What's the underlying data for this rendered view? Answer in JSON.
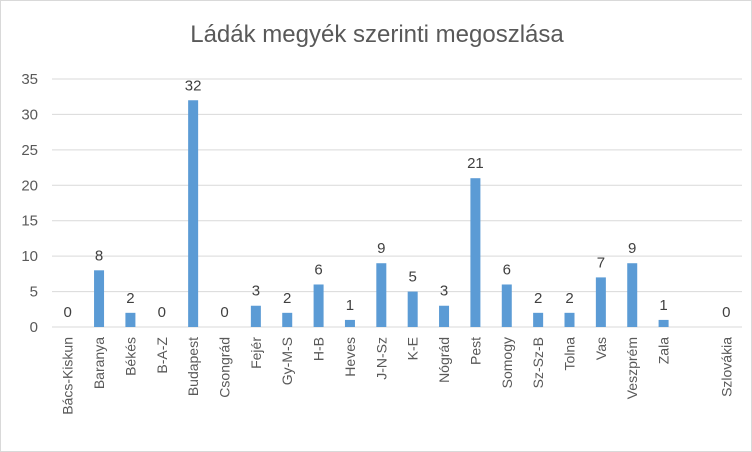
{
  "chart_data": {
    "type": "bar",
    "title": "Ládák megyék szerinti megoszlása",
    "categories": [
      "Bács-Kiskun",
      "Baranya",
      "Békés",
      "B-A-Z",
      "Budapest",
      "Csongrád",
      "Fejér",
      "Gy-M-S",
      "H-B",
      "Heves",
      "J-N-Sz",
      "K-E",
      "Nógrád",
      "Pest",
      "Somogy",
      "Sz-Sz-B",
      "Tolna",
      "Vas",
      "Veszprém",
      "Zala",
      "",
      "Szlovákia"
    ],
    "values": [
      0,
      8,
      2,
      0,
      32,
      0,
      3,
      2,
      6,
      1,
      9,
      5,
      3,
      21,
      6,
      2,
      2,
      7,
      9,
      1,
      null,
      0
    ],
    "ylim": [
      0,
      35
    ],
    "yticks": [
      0,
      5,
      10,
      15,
      20,
      25,
      30,
      35
    ],
    "grid": true,
    "legend": "none",
    "bar_color": "#5b9bd5",
    "grid_color": "#d9d9d9"
  }
}
